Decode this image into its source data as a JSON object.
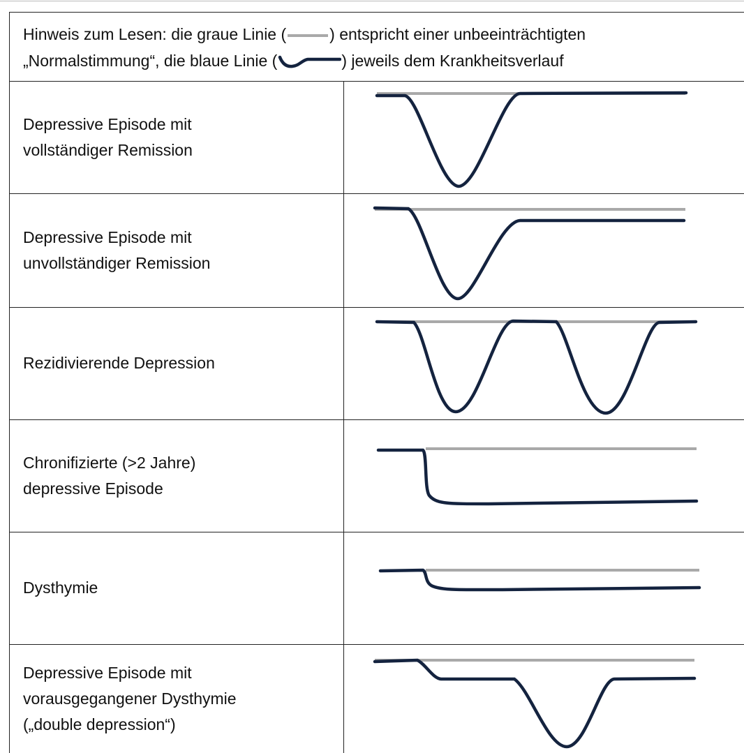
{
  "note": [
    "Hinweis zum Lesen: die graue Linie (",
    ") entspricht einer unbeeinträchtigten",
    "„Normalstimmung“, die blaue Linie (",
    ") jeweils dem Krankheitsverlauf"
  ],
  "rows": [
    {
      "label": [
        "Depressive Episode mit",
        "vollständiger Remission"
      ]
    },
    {
      "label": [
        "Depressive Episode mit",
        "unvollständiger Remission"
      ]
    },
    {
      "label": [
        "Rezidivierende Depression"
      ]
    },
    {
      "label": [
        "Chronifizierte (>2 Jahre)",
        "depressive Episode"
      ]
    },
    {
      "label": [
        "Dysthymie"
      ]
    },
    {
      "label": [
        "Depressive Episode mit",
        "vorausgegangener Dysthymie",
        "(„double depression“)"
      ]
    }
  ]
}
